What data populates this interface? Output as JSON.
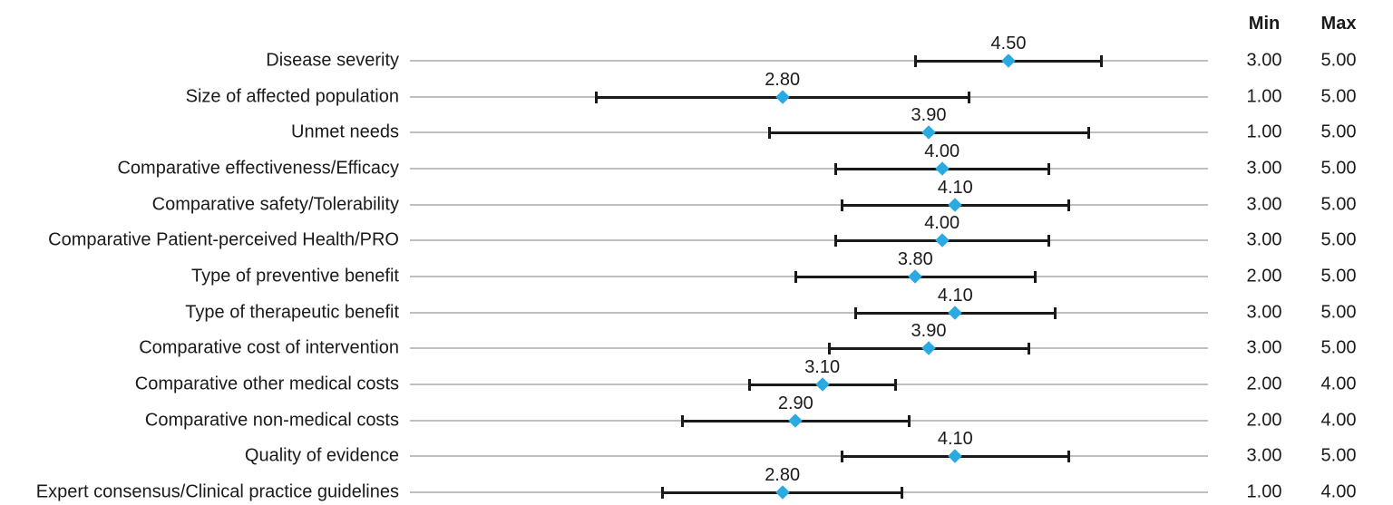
{
  "chart_data": {
    "type": "dot-whisker",
    "orientation": "horizontal",
    "title": "",
    "xlabel": "",
    "ylabel": "",
    "xlim": [
      0,
      6
    ],
    "grid": true,
    "legend": false,
    "marker_shape": "diamond",
    "colors": {
      "marker": "#29ABE2",
      "whisker": "#1A1A1A",
      "gridline": "#BFBFBF",
      "text": "#1A1A1A"
    },
    "columns": {
      "min_header": "Min",
      "max_header": "Max"
    },
    "rows": [
      {
        "label": "Disease severity",
        "mean": 4.5,
        "mean_label": "4.50",
        "low": 3.8,
        "high": 5.2,
        "min": "3.00",
        "max": "5.00"
      },
      {
        "label": "Size of affected population",
        "mean": 2.8,
        "mean_label": "2.80",
        "low": 1.4,
        "high": 4.2,
        "min": "1.00",
        "max": "5.00"
      },
      {
        "label": "Unmet needs",
        "mean": 3.9,
        "mean_label": "3.90",
        "low": 2.7,
        "high": 5.1,
        "min": "1.00",
        "max": "5.00"
      },
      {
        "label": "Comparative effectiveness/Efficacy",
        "mean": 4.0,
        "mean_label": "4.00",
        "low": 3.2,
        "high": 4.8,
        "min": "3.00",
        "max": "5.00"
      },
      {
        "label": "Comparative safety/Tolerability",
        "mean": 4.1,
        "mean_label": "4.10",
        "low": 3.25,
        "high": 4.95,
        "min": "3.00",
        "max": "5.00"
      },
      {
        "label": "Comparative Patient-perceived Health/PRO",
        "mean": 4.0,
        "mean_label": "4.00",
        "low": 3.2,
        "high": 4.8,
        "min": "3.00",
        "max": "5.00"
      },
      {
        "label": "Type of preventive benefit",
        "mean": 3.8,
        "mean_label": "3.80",
        "low": 2.9,
        "high": 4.7,
        "min": "2.00",
        "max": "5.00"
      },
      {
        "label": "Type of therapeutic benefit",
        "mean": 4.1,
        "mean_label": "4.10",
        "low": 3.35,
        "high": 4.85,
        "min": "3.00",
        "max": "5.00"
      },
      {
        "label": "Comparative cost of intervention",
        "mean": 3.9,
        "mean_label": "3.90",
        "low": 3.15,
        "high": 4.65,
        "min": "3.00",
        "max": "5.00"
      },
      {
        "label": "Comparative other medical costs",
        "mean": 3.1,
        "mean_label": "3.10",
        "low": 2.55,
        "high": 3.65,
        "min": "2.00",
        "max": "4.00"
      },
      {
        "label": "Comparative non-medical costs",
        "mean": 2.9,
        "mean_label": "2.90",
        "low": 2.05,
        "high": 3.75,
        "min": "2.00",
        "max": "4.00"
      },
      {
        "label": "Quality of evidence",
        "mean": 4.1,
        "mean_label": "4.10",
        "low": 3.25,
        "high": 4.95,
        "min": "3.00",
        "max": "5.00"
      },
      {
        "label": "Expert consensus/Clinical practice guidelines",
        "mean": 2.8,
        "mean_label": "2.80",
        "low": 1.9,
        "high": 3.7,
        "min": "1.00",
        "max": "4.00"
      }
    ]
  }
}
